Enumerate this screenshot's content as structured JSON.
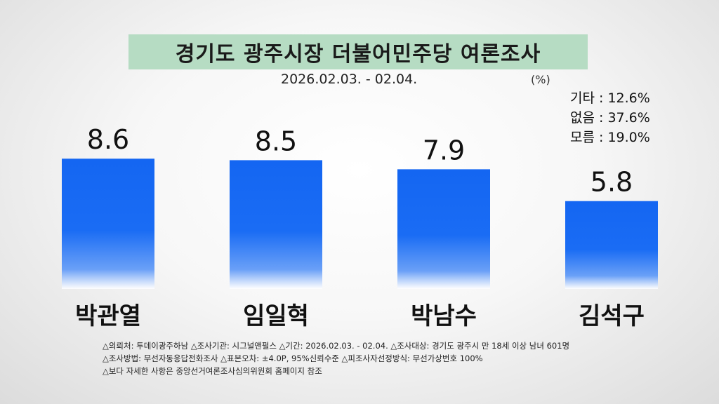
{
  "header": {
    "title": "경기도 광주시장 더불어민주당 여론조사",
    "date_range": "2026.02.03. - 02.04.",
    "unit": "(%)"
  },
  "others": [
    {
      "label": "기타",
      "value": "12.6%"
    },
    {
      "label": "없음",
      "value": "37.6%"
    },
    {
      "label": "모름",
      "value": "19.0%"
    }
  ],
  "chart_data": {
    "type": "bar",
    "title": "경기도 광주시장 더불어민주당 여론조사",
    "categories": [
      "박관열",
      "임일혁",
      "박남수",
      "김석구"
    ],
    "values": [
      8.6,
      8.5,
      7.9,
      5.8
    ],
    "value_labels": [
      "8.6",
      "8.5",
      "7.9",
      "5.8"
    ],
    "ylim": [
      0,
      10
    ],
    "grid": false,
    "bar_color": "#1466f2"
  },
  "footnotes": [
    "△의뢰처: 투데이광주하남  △조사기관: 시그널앤펄스 △기간: 2026.02.03. - 02.04. △조사대상: 경기도 광주시 만 18세 이상 남녀 601명",
    "△조사방법: 무선자동응답전화조사   △표본오차:  ±4.0P, 95%신뢰수준 △피조사자선정방식: 무선가상번호 100%",
    "△보다 자세한 사항은 중앙선거여론조사심의위원회 홈페이지 참조"
  ]
}
